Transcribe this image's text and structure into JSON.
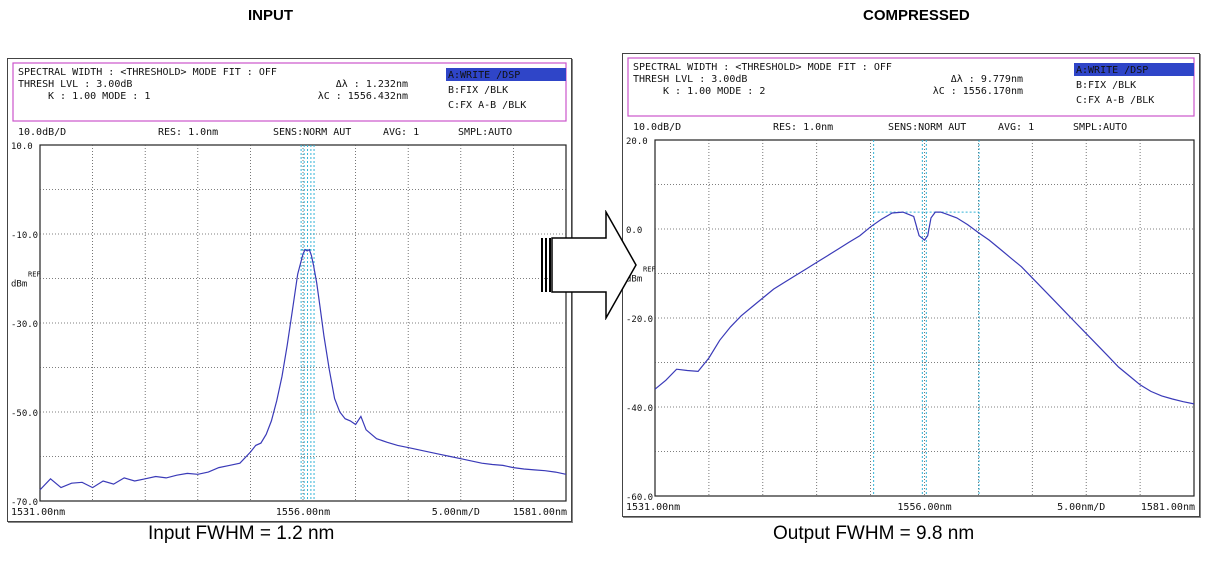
{
  "titles": {
    "left": "INPUT",
    "right": "COMPRESSED"
  },
  "captions": {
    "left": "Input FWHM = 1.2 nm",
    "right": "Output FWHM = 9.8 nm"
  },
  "colors": {
    "trace": "#3a3ab8",
    "marker": "#35b4d8",
    "header_border": "#cc55cc",
    "highlight": "#2f45c8",
    "grid": "#555555"
  },
  "chart_data": [
    {
      "type": "line",
      "title": "",
      "header": {
        "line1": "SPECTRAL WIDTH : <THRESHOLD>  MODE FIT : OFF",
        "line2a": "THRESH LVL :  3.00dB",
        "line2b": "Δλ :      1.232nm",
        "line3a": "K :  1.00    MODE : 1",
        "line3b": "λC : 1556.432nm",
        "status": [
          "A:WRITE   /DSP",
          "B:FIX     /BLK",
          "C:FX A-B  /BLK"
        ],
        "settings": [
          "10.0dB/D",
          "RES: 1.0nm",
          "SENS:NORM AUT",
          "AVG:   1",
          "SMPL:AUTO"
        ]
      },
      "y_tick_labels": [
        "10.0",
        "-10.0",
        "-30.0",
        "-50.0",
        "-70.0"
      ],
      "ref_label": "REF",
      "unit_label": "dBm",
      "x_tick_labels": [
        "1531.00nm",
        "1556.00nm",
        "5.00nm/D",
        "1581.00nm"
      ],
      "xlim": [
        1531,
        1581
      ],
      "ylim": [
        -70,
        10
      ],
      "grid": true,
      "fwhm_nm": 1.232,
      "center_nm": 1556.432,
      "series": [
        {
          "x": [
            1531,
            1532,
            1533,
            1534,
            1535,
            1536,
            1537,
            1538,
            1539,
            1540,
            1541,
            1542,
            1543,
            1544,
            1545,
            1546,
            1547,
            1548,
            1549,
            1550,
            1551,
            1551.5,
            1552,
            1552.5,
            1553,
            1553.5,
            1554,
            1554.5,
            1555,
            1555.5,
            1556,
            1556.2,
            1556.4,
            1556.6,
            1556.8,
            1557,
            1557.3,
            1557.6,
            1558,
            1558.5,
            1559,
            1559.5,
            1560,
            1560.5,
            1561,
            1561.5,
            1562,
            1562.5,
            1563,
            1564,
            1565,
            1566,
            1567,
            1568,
            1569,
            1570,
            1571,
            1572,
            1573,
            1574,
            1575,
            1576,
            1577,
            1578,
            1579,
            1580,
            1581
          ],
          "values": [
            -67.5,
            -65,
            -67,
            -66,
            -65.8,
            -67,
            -65.5,
            -66.2,
            -64.8,
            -65.5,
            -65,
            -64.5,
            -64.8,
            -64.2,
            -63.8,
            -64,
            -63.5,
            -62.5,
            -62,
            -61.5,
            -59,
            -57.5,
            -57,
            -55,
            -52,
            -47.5,
            -42,
            -35,
            -27,
            -19,
            -14.5,
            -13.5,
            -13.8,
            -13.5,
            -14.8,
            -17,
            -21,
            -26,
            -33,
            -40.5,
            -47,
            -50,
            -51.5,
            -52,
            -52.8,
            -51,
            -54,
            -55,
            -56,
            -56.8,
            -57.5,
            -58,
            -58.5,
            -59,
            -59.5,
            -60,
            -60.5,
            -61,
            -61.5,
            -61.8,
            -62,
            -62.5,
            -62.8,
            -63,
            -63.2,
            -63.5,
            -64
          ]
        }
      ],
      "markers_nm": [
        1555.82,
        1556.11,
        1556.43,
        1556.75,
        1557.05
      ]
    },
    {
      "type": "line",
      "title": "",
      "header": {
        "line1": "SPECTRAL WIDTH : <THRESHOLD>  MODE FIT : OFF",
        "line2a": "THRESH LVL :  3.00dB",
        "line2b": "Δλ :      9.779nm",
        "line3a": "K :  1.00    MODE : 2",
        "line3b": "λC : 1556.170nm",
        "status": [
          "A:WRITE   /DSP",
          "B:FIX     /BLK",
          "C:FX A-B  /BLK"
        ],
        "settings": [
          "10.0dB/D",
          "RES: 1.0nm",
          "SENS:NORM AUT",
          "AVG:   1",
          "SMPL:AUTO"
        ]
      },
      "y_tick_labels": [
        "20.0",
        "0.0",
        "-20.0",
        "-40.0",
        "-60.0"
      ],
      "ref_label": "REF",
      "unit_label": "dBm",
      "x_tick_labels": [
        "1531.00nm",
        "1556.00nm",
        "5.00nm/D",
        "1581.00nm"
      ],
      "xlim": [
        1531,
        1581
      ],
      "ylim": [
        -60,
        20
      ],
      "grid": true,
      "fwhm_nm": 9.779,
      "center_nm": 1556.17,
      "series": [
        {
          "x": [
            1531,
            1532,
            1533,
            1534,
            1535,
            1536,
            1537,
            1538,
            1539,
            1540,
            1541,
            1542,
            1543,
            1544,
            1545,
            1546,
            1547,
            1548,
            1549,
            1550,
            1551,
            1552,
            1553,
            1554,
            1555,
            1555.5,
            1556,
            1556.3,
            1556.6,
            1557,
            1557.5,
            1558,
            1559,
            1560,
            1561,
            1562,
            1563,
            1564,
            1565,
            1566,
            1567,
            1568,
            1569,
            1570,
            1571,
            1572,
            1573,
            1574,
            1575,
            1576,
            1577,
            1578,
            1579,
            1580,
            1581
          ],
          "values": [
            -36,
            -34,
            -31.5,
            -31.8,
            -32,
            -29,
            -25,
            -22,
            -19.5,
            -17.5,
            -15.5,
            -13.5,
            -12,
            -10.5,
            -9,
            -7.5,
            -6,
            -4.5,
            -3,
            -1.5,
            0.5,
            2.2,
            3.6,
            3.8,
            2.8,
            -1.5,
            -2.5,
            -1.5,
            2.5,
            3.8,
            3.8,
            3.4,
            2.5,
            1,
            -0.8,
            -2.5,
            -4.5,
            -6.5,
            -8.5,
            -11,
            -13.5,
            -16,
            -18.5,
            -21,
            -23.5,
            -26,
            -28.5,
            -31,
            -33,
            -35,
            -36.5,
            -37.5,
            -38.2,
            -38.8,
            -39.3
          ]
        }
      ],
      "markers_nm": [
        1551.28,
        1555.8,
        1556.17,
        1561.06
      ]
    }
  ]
}
